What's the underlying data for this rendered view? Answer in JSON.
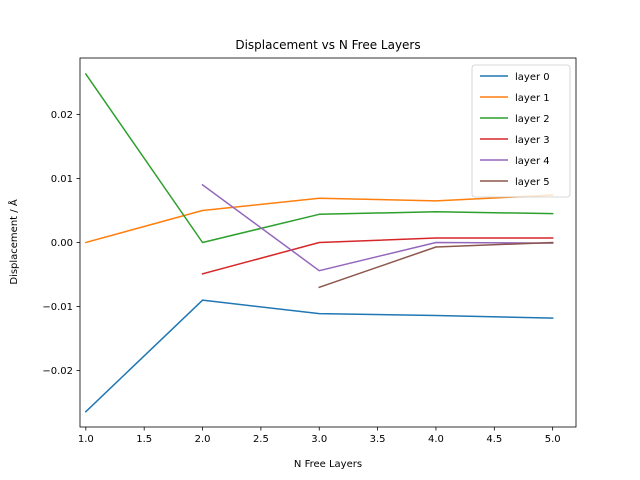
{
  "chart_data": {
    "type": "line",
    "title": "Displacement vs N Free Layers",
    "xlabel": "N Free Layers",
    "ylabel": "Displacement / Å",
    "xlim": [
      0.95,
      5.2
    ],
    "ylim": [
      -0.0288,
      0.0288
    ],
    "xticks": [
      1.0,
      1.5,
      2.0,
      2.5,
      3.0,
      3.5,
      4.0,
      4.5,
      5.0
    ],
    "xtick_labels": [
      "1.0",
      "1.5",
      "2.0",
      "2.5",
      "3.0",
      "3.5",
      "4.0",
      "4.5",
      "5.0"
    ],
    "yticks": [
      -0.02,
      -0.01,
      0.0,
      0.01,
      0.02
    ],
    "ytick_labels": [
      "−0.02",
      "−0.01",
      "0.00",
      "0.01",
      "0.02"
    ],
    "grid": false,
    "legend_position": "top-right",
    "series": [
      {
        "name": "layer 0",
        "color": "#1f77b4",
        "x": [
          1,
          2,
          3,
          4,
          5
        ],
        "y": [
          -0.0264,
          -0.009,
          -0.0111,
          -0.0114,
          -0.0118
        ]
      },
      {
        "name": "layer 1",
        "color": "#ff7f0e",
        "x": [
          1,
          2,
          3,
          4,
          5
        ],
        "y": [
          0.0,
          0.005,
          0.0069,
          0.0065,
          0.0074
        ]
      },
      {
        "name": "layer 2",
        "color": "#2ca02c",
        "x": [
          1,
          2,
          3,
          4,
          5
        ],
        "y": [
          0.0263,
          0.0,
          0.0044,
          0.0048,
          0.0045
        ]
      },
      {
        "name": "layer 3",
        "color": "#d62728",
        "x": [
          2,
          3,
          4,
          5
        ],
        "y": [
          -0.0049,
          0.0,
          0.0007,
          0.0007
        ]
      },
      {
        "name": "layer 4",
        "color": "#9467bd",
        "x": [
          2,
          3,
          4,
          5
        ],
        "y": [
          0.009,
          -0.0044,
          0.0,
          -0.0001
        ]
      },
      {
        "name": "layer 5",
        "color": "#8c564b",
        "x": [
          3,
          4,
          5
        ],
        "y": [
          -0.007,
          -0.0007,
          0.0
        ]
      }
    ]
  }
}
